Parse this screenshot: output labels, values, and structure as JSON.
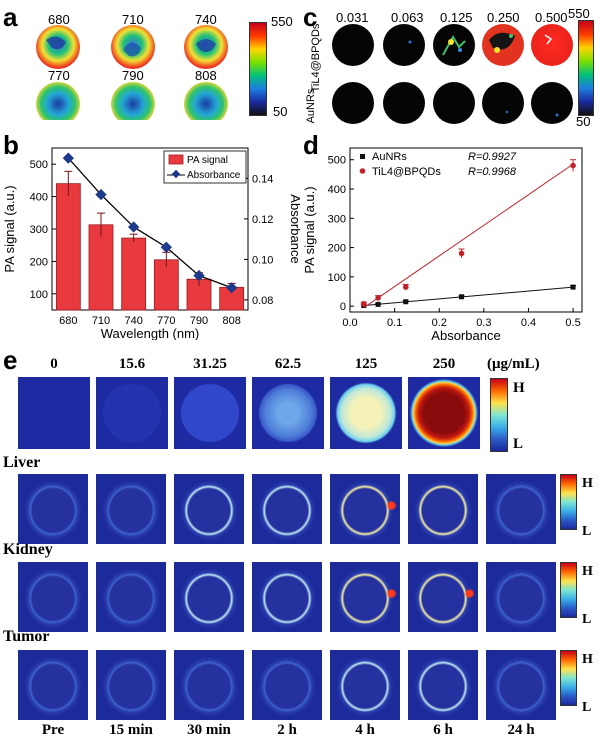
{
  "panel_a": {
    "label": "a",
    "wavelengths": [
      "680",
      "710",
      "740",
      "770",
      "790",
      "808"
    ],
    "colorbar": {
      "max": "550",
      "min": "50"
    }
  },
  "panel_b": {
    "label": "b"
  },
  "panel_c": {
    "label": "c",
    "concentrations": [
      "0.031",
      "0.063",
      "0.125",
      "0.250",
      "0.500"
    ],
    "row_labels": [
      "TiL4@BPQDs",
      "AuNRs"
    ],
    "colorbar": {
      "max": "550",
      "min": "50"
    }
  },
  "panel_d": {
    "label": "d"
  },
  "panel_e": {
    "label": "e",
    "concentrations": [
      "0",
      "15.6",
      "31.25",
      "62.5",
      "125",
      "250"
    ],
    "unit": "(μg/mL)",
    "colorbar": {
      "high": "H",
      "low": "L"
    },
    "organs": [
      "Liver",
      "Kidney",
      "Tumor"
    ],
    "times": [
      "Pre",
      "15 min",
      "30 min",
      "2 h",
      "4 h",
      "6 h",
      "24 h"
    ]
  },
  "colors": {
    "bar": "#e8393f",
    "absorbance": "#1f3a8c",
    "aunrs": "#111111",
    "tiL4": "#c0232a",
    "map_bg": "#1d2a9a"
  },
  "chart_data": [
    {
      "type": "bar",
      "title": "",
      "xlabel": "Wavelength (nm)",
      "ylabel": "PA signal (a.u.)",
      "y2label": "Absorbance",
      "categories": [
        "680",
        "710",
        "740",
        "770",
        "790",
        "808"
      ],
      "ylim": [
        50,
        550
      ],
      "yticks": [
        "100",
        "200",
        "300",
        "400",
        "500"
      ],
      "y2lim": [
        0.075,
        0.155
      ],
      "y2ticks": [
        "0.08",
        "0.10",
        "0.12",
        "0.14"
      ],
      "legend_placement": "top-right",
      "series": [
        {
          "name": "PA signal",
          "kind": "bar",
          "values": [
            440,
            313,
            272,
            205,
            145,
            120
          ],
          "errors": [
            38,
            36,
            12,
            23,
            20,
            12
          ]
        },
        {
          "name": "Absorbance",
          "kind": "line",
          "axis": "right",
          "values": [
            0.15,
            0.132,
            0.116,
            0.106,
            0.092,
            0.086
          ]
        }
      ]
    },
    {
      "type": "scatter",
      "title": "",
      "xlabel": "Absorbance",
      "ylabel": "PA signal (a.u.)",
      "xlim": [
        0,
        0.52
      ],
      "ylim": [
        -20,
        540
      ],
      "xticks": [
        "0.0",
        "0.1",
        "0.2",
        "0.3",
        "0.4",
        "0.5"
      ],
      "yticks": [
        "0",
        "100",
        "200",
        "300",
        "400",
        "500"
      ],
      "legend_placement": "top-left",
      "series": [
        {
          "name": "AuNRs",
          "r": "R=0.9927",
          "x": [
            0.031,
            0.063,
            0.125,
            0.25,
            0.5
          ],
          "values": [
            2,
            6,
            15,
            32,
            65
          ],
          "errors": [
            2,
            2,
            3,
            3,
            5
          ],
          "fit": [
            [
              0.031,
              2
            ],
            [
              0.5,
              65
            ]
          ]
        },
        {
          "name": "TiL4@BPQDs",
          "r": "R=0.9968",
          "x": [
            0.031,
            0.063,
            0.125,
            0.25,
            0.5
          ],
          "values": [
            8,
            28,
            65,
            180,
            480
          ],
          "errors": [
            6,
            8,
            9,
            15,
            20
          ],
          "fit": [
            [
              0.031,
              -5
            ],
            [
              0.5,
              485
            ]
          ]
        }
      ]
    }
  ]
}
